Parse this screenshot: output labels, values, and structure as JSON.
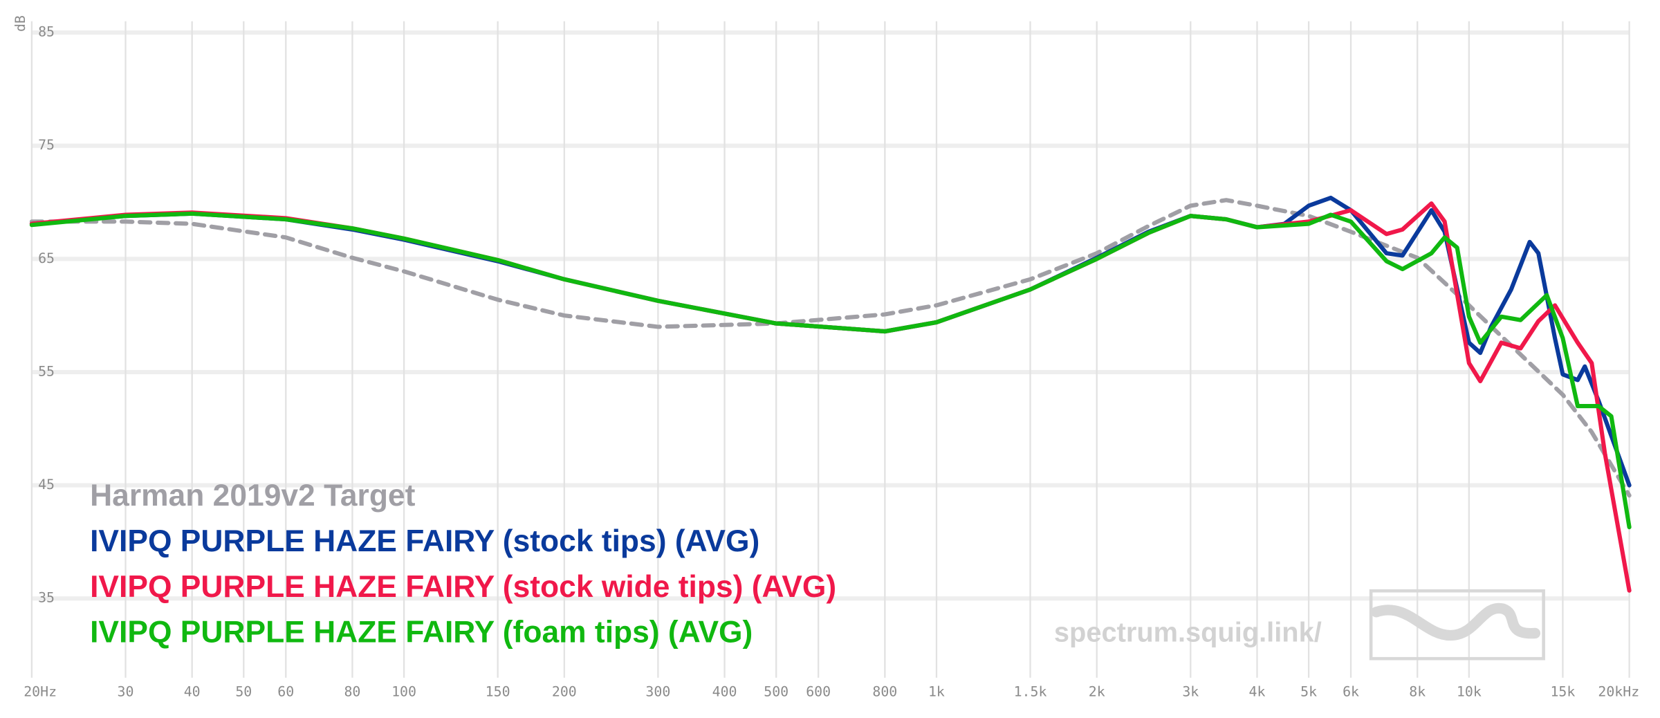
{
  "chart_data": {
    "type": "line",
    "y_label": "dB",
    "watermark": "spectrum.squig.link/",
    "log_x": true,
    "grid": true,
    "xlim": [
      20,
      20000
    ],
    "ylim": [
      28,
      86
    ],
    "yticks": [
      35,
      45,
      55,
      65,
      75,
      85
    ],
    "xticks": [
      {
        "value": 20,
        "label": "20Hz"
      },
      30,
      40,
      50,
      60,
      80,
      100,
      150,
      200,
      300,
      400,
      500,
      600,
      800,
      {
        "value": 1000,
        "label": "1k"
      },
      {
        "value": 1500,
        "label": "1.5k"
      },
      {
        "value": 2000,
        "label": "2k"
      },
      {
        "value": 3000,
        "label": "3k"
      },
      {
        "value": 4000,
        "label": "4k"
      },
      {
        "value": 5000,
        "label": "5k"
      },
      {
        "value": 6000,
        "label": "6k"
      },
      {
        "value": 8000,
        "label": "8k"
      },
      {
        "value": 10000,
        "label": "10k"
      },
      {
        "value": 15000,
        "label": "15k"
      },
      {
        "value": 20000,
        "label": "20kHz"
      }
    ],
    "series": [
      {
        "name": "Harman 2019v2 Target",
        "color": "#a09fa5",
        "dashed": true,
        "x": [
          20,
          30,
          40,
          60,
          80,
          100,
          150,
          200,
          300,
          500,
          800,
          1000,
          1500,
          2000,
          2500,
          3000,
          3500,
          4000,
          5000,
          6000,
          8000,
          10000,
          15000,
          17000,
          20000
        ],
        "values": [
          68.3,
          68.3,
          68.1,
          66.9,
          65.1,
          63.9,
          61.4,
          60.0,
          59.0,
          59.3,
          60.1,
          60.9,
          63.2,
          65.5,
          67.9,
          69.7,
          70.2,
          69.7,
          68.8,
          67.4,
          65.1,
          60.9,
          53.0,
          49.7,
          44.1
        ]
      },
      {
        "name": "IVIPQ PURPLE HAZE FAIRY (stock tips) (AVG)",
        "color": "#0a3a9c",
        "x": [
          20,
          30,
          40,
          60,
          80,
          100,
          150,
          200,
          300,
          500,
          800,
          1000,
          1500,
          2000,
          2500,
          3000,
          3500,
          4000,
          4500,
          5000,
          5500,
          6000,
          7000,
          7500,
          8500,
          9000,
          10000,
          10500,
          11000,
          12000,
          13000,
          13500,
          14500,
          15000,
          16000,
          16500,
          17500,
          20000
        ],
        "values": [
          68.1,
          68.8,
          69.0,
          68.5,
          67.6,
          66.7,
          64.8,
          63.2,
          61.3,
          59.3,
          58.6,
          59.4,
          62.3,
          65.1,
          67.4,
          68.8,
          68.5,
          67.8,
          68.1,
          69.7,
          70.4,
          69.3,
          65.5,
          65.3,
          69.3,
          67.4,
          57.6,
          56.7,
          59.0,
          62.3,
          66.5,
          65.5,
          58.0,
          54.8,
          54.3,
          55.5,
          52.5,
          45.0
        ]
      },
      {
        "name": "IVIPQ PURPLE HAZE FAIRY (stock wide tips) (AVG)",
        "color": "#f0184a",
        "x": [
          20,
          30,
          40,
          60,
          80,
          100,
          150,
          200,
          300,
          500,
          800,
          1000,
          1500,
          2000,
          2500,
          3000,
          3500,
          4000,
          5000,
          6000,
          7000,
          7500,
          8500,
          9000,
          10000,
          10500,
          11500,
          12500,
          13500,
          14500,
          16000,
          17000,
          18000,
          20000
        ],
        "values": [
          68.1,
          68.9,
          69.1,
          68.6,
          67.7,
          66.8,
          64.9,
          63.2,
          61.3,
          59.3,
          58.6,
          59.4,
          62.3,
          65.0,
          67.3,
          68.8,
          68.5,
          67.8,
          68.3,
          69.3,
          67.2,
          67.6,
          69.9,
          68.3,
          55.8,
          54.2,
          57.6,
          57.1,
          59.5,
          60.9,
          57.6,
          55.8,
          47.8,
          35.7
        ]
      },
      {
        "name": "IVIPQ PURPLE HAZE FAIRY (foam tips) (AVG)",
        "color": "#10b810",
        "x": [
          20,
          30,
          40,
          60,
          80,
          100,
          150,
          200,
          300,
          500,
          800,
          1000,
          1500,
          2000,
          2500,
          3000,
          3500,
          4000,
          5000,
          5500,
          6000,
          7000,
          7500,
          8500,
          9000,
          9500,
          10000,
          10500,
          11500,
          12500,
          14000,
          15000,
          16000,
          17500,
          18500,
          20000
        ],
        "values": [
          68.0,
          68.8,
          69.0,
          68.5,
          67.7,
          66.8,
          64.9,
          63.2,
          61.3,
          59.3,
          58.6,
          59.4,
          62.3,
          65.0,
          67.3,
          68.8,
          68.5,
          67.8,
          68.1,
          68.9,
          68.3,
          64.8,
          64.1,
          65.5,
          66.9,
          66.0,
          59.9,
          57.6,
          59.9,
          59.6,
          61.8,
          58.0,
          52.0,
          52.0,
          51.1,
          41.3
        ]
      }
    ]
  }
}
